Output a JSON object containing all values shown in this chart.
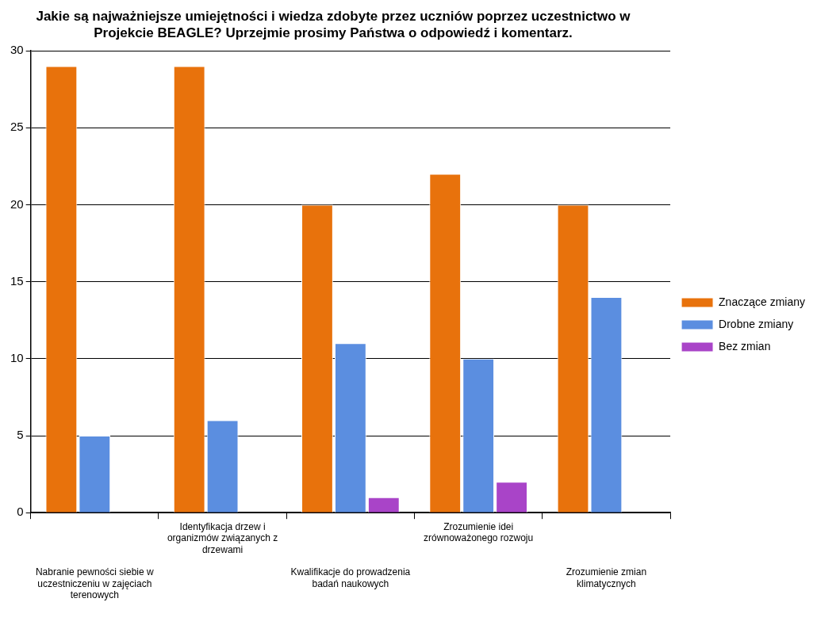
{
  "chart_data": {
    "type": "bar",
    "title": "Jakie są najważniejsze umiejętności i wiedza zdobyte przez uczniów poprzez uczestnictwo w Projekcie BEAGLE? Uprzejmie prosimy Państwa o odpowiedź i komentarz.",
    "categories": [
      "Nabranie pewności siebie w uczestniczeniu w zajęciach terenowych",
      "Identyfikacja drzew i organizmów związanych z drzewami",
      "Kwalifikacje do prowadzenia badań naukowych",
      "Zrozumienie idei zrównoważonego rozwoju",
      "Zrozumienie zmian klimatycznych"
    ],
    "series": [
      {
        "name": "Znaczące zmiany",
        "color": "#e8720c",
        "values": [
          29,
          29,
          20,
          22,
          20
        ]
      },
      {
        "name": "Drobne zmiany",
        "color": "#5b8ee0",
        "values": [
          5,
          6,
          11,
          10,
          14
        ]
      },
      {
        "name": "Bez zmian",
        "color": "#a944c8",
        "values": [
          0,
          0,
          1,
          2,
          0
        ]
      }
    ],
    "ylim": [
      0,
      30
    ],
    "yticks": [
      0,
      5,
      10,
      15,
      20,
      25,
      30
    ],
    "grid": "y",
    "legend": "right"
  }
}
